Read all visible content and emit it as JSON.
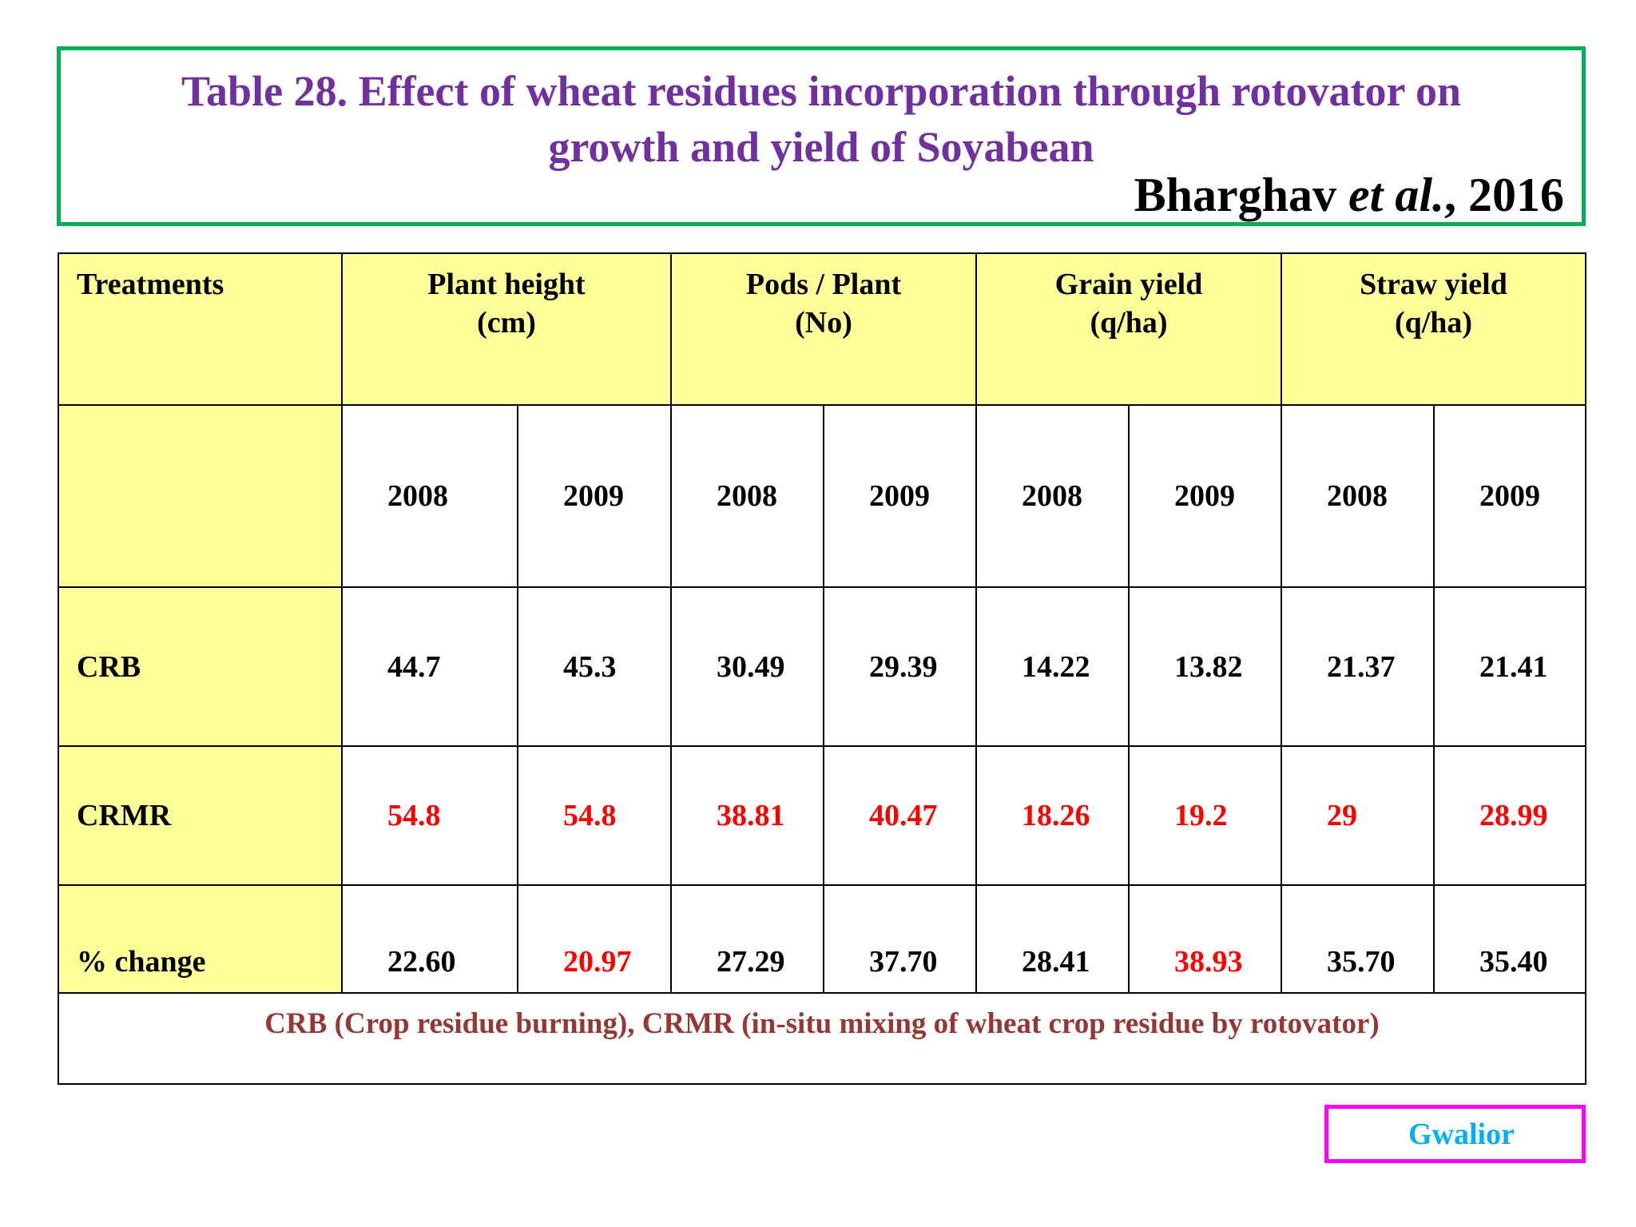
{
  "title": {
    "line1": "Table 28. Effect of wheat residues incorporation through rotovator on",
    "line2": "growth and yield of Soyabean",
    "citation_author": "Bharghav",
    "citation_etal": "et al.",
    "citation_year": ", 2016",
    "border_color": "#00b050",
    "text_color": "#7030a0"
  },
  "table": {
    "treatments_header": "Treatments",
    "groups": [
      {
        "line1": "Plant height",
        "line2": "(cm)"
      },
      {
        "line1": "Pods / Plant",
        "line2": "(No)"
      },
      {
        "line1": "Grain yield",
        "line2": "(q/ha)"
      },
      {
        "line1": "Straw yield",
        "line2": "(q/ha)"
      }
    ],
    "years": [
      "2008",
      "2009",
      "2008",
      "2009",
      "2008",
      "2009",
      "2008",
      "2009"
    ],
    "rows": [
      {
        "label": "CRB",
        "values": [
          "44.7",
          "45.3",
          "30.49",
          "29.39",
          "14.22",
          "13.82",
          "21.37",
          "21.41"
        ]
      },
      {
        "label": "CRMR",
        "values": [
          "54.8",
          "54.8",
          "38.81",
          "40.47",
          "18.26",
          "19.2",
          "29",
          "28.99"
        ]
      },
      {
        "label": "% change",
        "values": [
          "22.60",
          "20.97",
          "27.29",
          "37.70",
          "28.41",
          "38.93",
          "35.70",
          "35.40"
        ]
      }
    ],
    "footnote": "CRB (Crop residue burning), CRMR (in-situ mixing of wheat crop residue by rotovator)",
    "header_fill": "#ffff99",
    "highlight_color": "#ff0000",
    "footnote_color": "#953735"
  },
  "location": {
    "label": "Gwalior",
    "border_color": "#ff00ff",
    "text_color": "#00b0f0"
  }
}
